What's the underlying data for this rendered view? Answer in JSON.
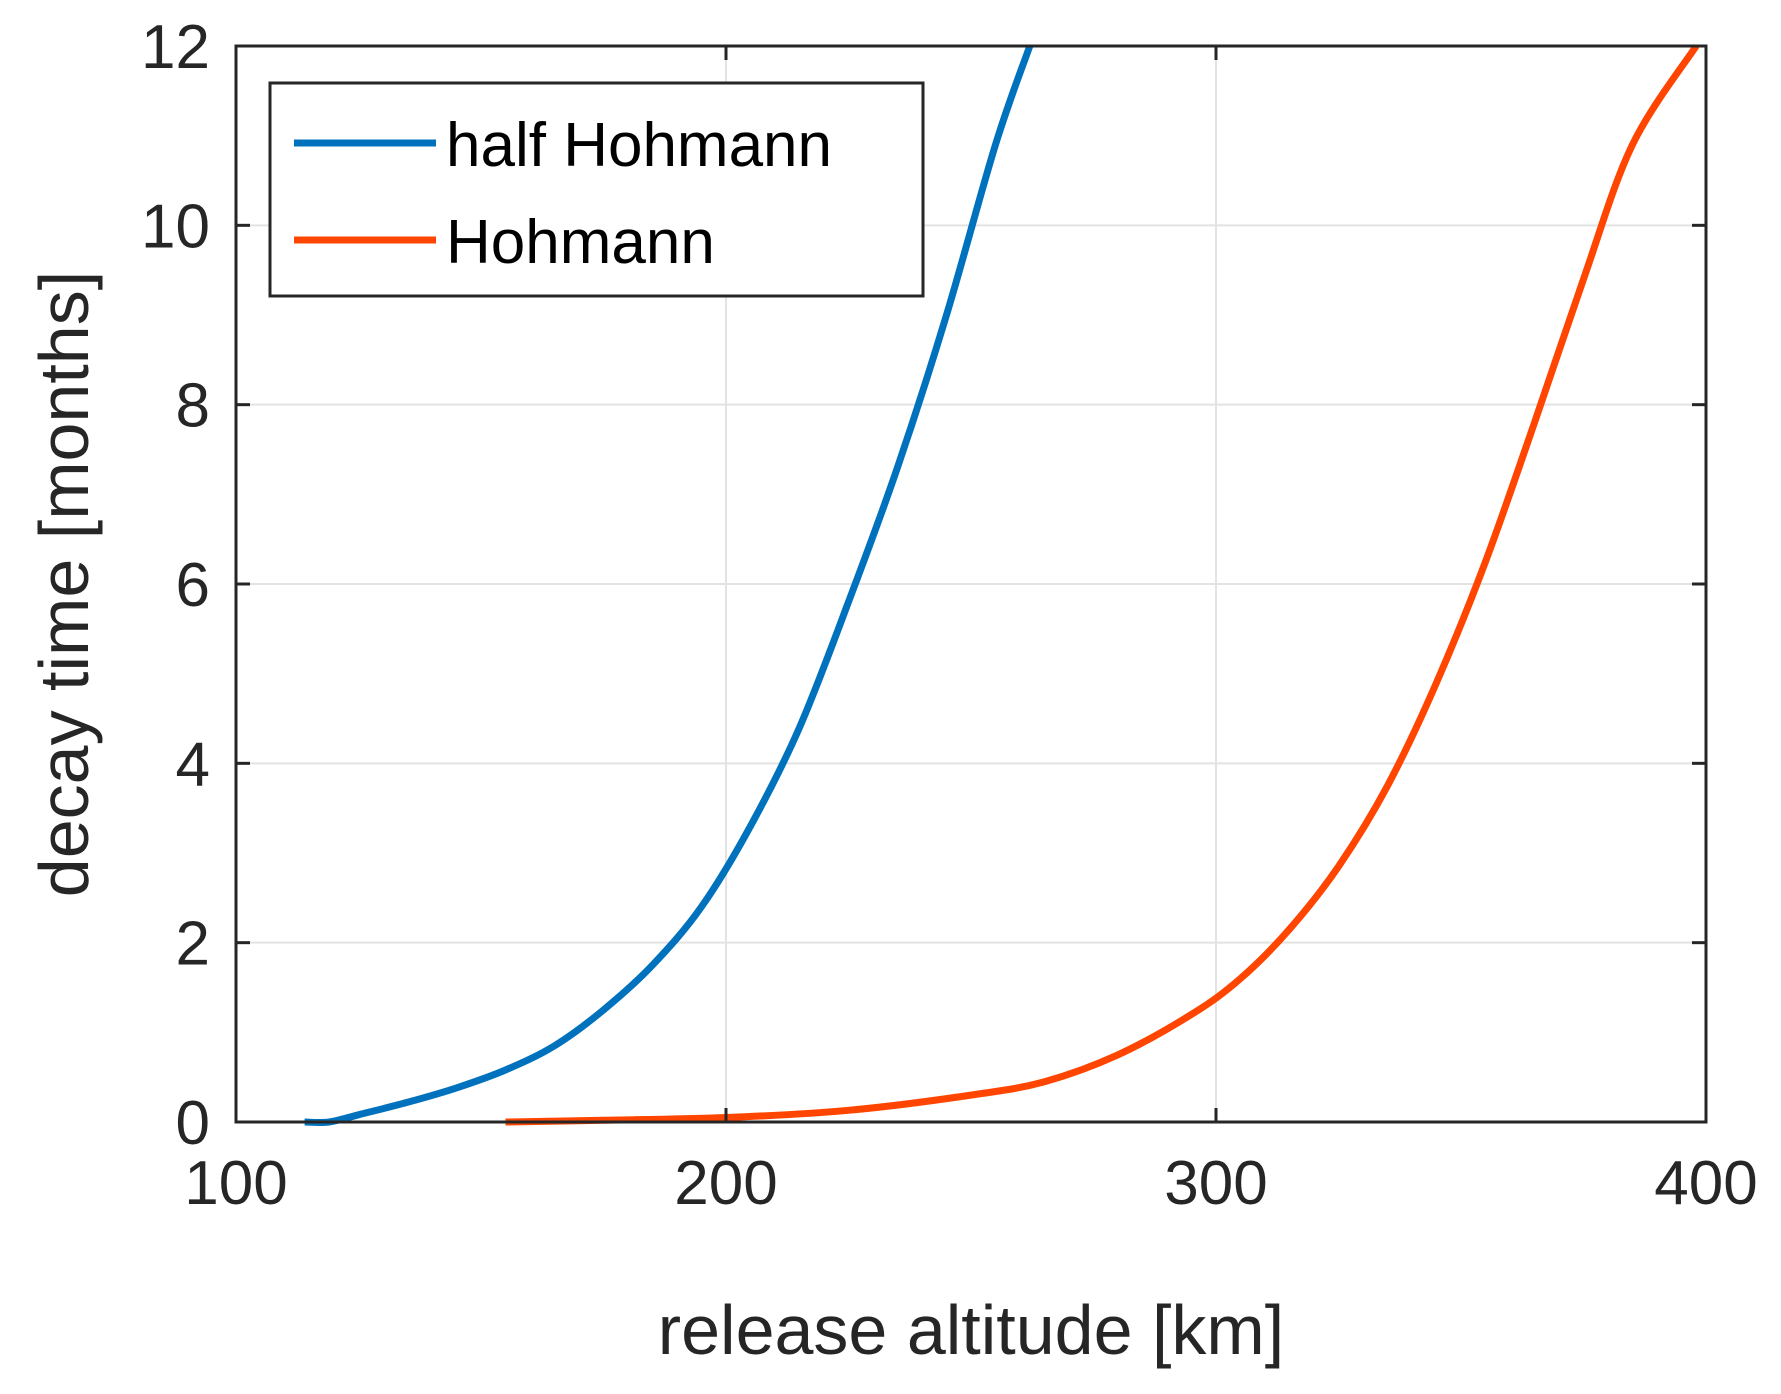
{
  "chart_data": {
    "type": "line",
    "title": "",
    "xlabel": "release altitude [km]",
    "ylabel": "decay time [months]",
    "xlim": [
      100,
      400
    ],
    "ylim": [
      0,
      12
    ],
    "xticks": [
      100,
      200,
      300,
      400
    ],
    "yticks": [
      0,
      2,
      4,
      6,
      8,
      10,
      12
    ],
    "xtick_labels": [
      "100",
      "200",
      "300",
      "400"
    ],
    "ytick_labels": [
      "0",
      "2",
      "4",
      "6",
      "8",
      "10",
      "12"
    ],
    "grid": true,
    "legend_position": "top-left",
    "series": [
      {
        "name": "half Hohmann",
        "color": "#0072BD",
        "points": [
          [
            114,
            0.0
          ],
          [
            119,
            0.0
          ],
          [
            125,
            0.08
          ],
          [
            135,
            0.22
          ],
          [
            145,
            0.38
          ],
          [
            155,
            0.58
          ],
          [
            165,
            0.85
          ],
          [
            175,
            1.25
          ],
          [
            185,
            1.75
          ],
          [
            195,
            2.4
          ],
          [
            205,
            3.3
          ],
          [
            215,
            4.4
          ],
          [
            225,
            5.8
          ],
          [
            235,
            7.3
          ],
          [
            245,
            9.0
          ],
          [
            255,
            10.9
          ],
          [
            262,
            12.0
          ]
        ]
      },
      {
        "name": "Hohmann",
        "color": "#FF4500",
        "points": [
          [
            155,
            0.0
          ],
          [
            175,
            0.02
          ],
          [
            200,
            0.05
          ],
          [
            225,
            0.13
          ],
          [
            250,
            0.3
          ],
          [
            265,
            0.45
          ],
          [
            280,
            0.75
          ],
          [
            295,
            1.2
          ],
          [
            305,
            1.6
          ],
          [
            315,
            2.15
          ],
          [
            325,
            2.85
          ],
          [
            335,
            3.75
          ],
          [
            345,
            4.9
          ],
          [
            355,
            6.25
          ],
          [
            365,
            7.8
          ],
          [
            375,
            9.4
          ],
          [
            385,
            10.9
          ],
          [
            398,
            12.0
          ]
        ]
      }
    ]
  }
}
